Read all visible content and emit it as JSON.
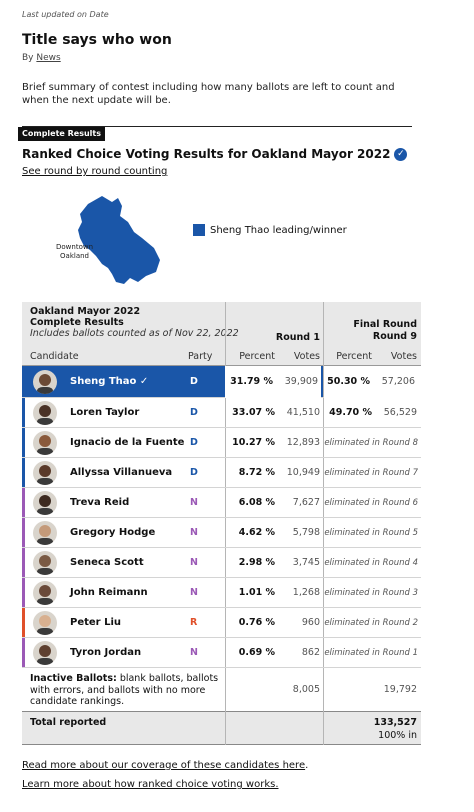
{
  "header": {
    "updated": "Last updated on Date",
    "title": "Title says who won",
    "by_prefix": "By ",
    "by_link": "News",
    "summary": "Brief summary of contest including how many ballots are left to count and when the next update will be."
  },
  "section_badge": "Complete Results",
  "rcv": {
    "title": "Ranked Choice Voting Results for Oakland Mayor 2022",
    "round_link": "See round by round counting"
  },
  "map": {
    "label_line1": "Downtown",
    "label_line2": "Oakland",
    "legend": "Sheng Thao leading/winner",
    "color": "#1a56a8"
  },
  "table": {
    "contest": "Oakland Mayor 2022",
    "complete": "Complete Results",
    "includes": "Includes ballots counted as of Nov 22, 2022",
    "round1": "Round 1",
    "final_round_line1": "Final Round",
    "final_round_line2": "Round 9",
    "col_candidate": "Candidate",
    "col_party": "Party",
    "col_percent": "Percent",
    "col_votes": "Votes",
    "rows": [
      {
        "name": "Sheng Thao",
        "winner_mark": "✓",
        "party": "D",
        "pct1": "31.79 %",
        "votes1": "39,909",
        "pct9": "50.30 %",
        "votes9": "57,206",
        "elim": ""
      },
      {
        "name": "Loren Taylor",
        "winner_mark": "",
        "party": "D",
        "pct1": "33.07 %",
        "votes1": "41,510",
        "pct9": "49.70 %",
        "votes9": "56,529",
        "elim": ""
      },
      {
        "name": "Ignacio de la Fuente",
        "winner_mark": "",
        "party": "D",
        "pct1": "10.27 %",
        "votes1": "12,893",
        "pct9": "",
        "votes9": "",
        "elim": "eliminated in Round 8"
      },
      {
        "name": "Allyssa Villanueva",
        "winner_mark": "",
        "party": "D",
        "pct1": "8.72 %",
        "votes1": "10,949",
        "pct9": "",
        "votes9": "",
        "elim": "eliminated in Round 7"
      },
      {
        "name": "Treva Reid",
        "winner_mark": "",
        "party": "N",
        "pct1": "6.08 %",
        "votes1": "7,627",
        "pct9": "",
        "votes9": "",
        "elim": "eliminated in Round 6"
      },
      {
        "name": "Gregory Hodge",
        "winner_mark": "",
        "party": "N",
        "pct1": "4.62 %",
        "votes1": "5,798",
        "pct9": "",
        "votes9": "",
        "elim": "eliminated in Round 5"
      },
      {
        "name": "Seneca Scott",
        "winner_mark": "",
        "party": "N",
        "pct1": "2.98 %",
        "votes1": "3,745",
        "pct9": "",
        "votes9": "",
        "elim": "eliminated in Round 4"
      },
      {
        "name": "John Reimann",
        "winner_mark": "",
        "party": "N",
        "pct1": "1.01 %",
        "votes1": "1,268",
        "pct9": "",
        "votes9": "",
        "elim": "eliminated in Round 3"
      },
      {
        "name": "Peter Liu",
        "winner_mark": "",
        "party": "R",
        "pct1": "0.76 %",
        "votes1": "960",
        "pct9": "",
        "votes9": "",
        "elim": "eliminated in Round 2"
      },
      {
        "name": "Tyron Jordan",
        "winner_mark": "",
        "party": "N",
        "pct1": "0.69 %",
        "votes1": "862",
        "pct9": "",
        "votes9": "",
        "elim": "eliminated in Round 1"
      }
    ],
    "party_colors": {
      "D": "#1a56a8",
      "N": "#9b59b6",
      "R": "#e0502a"
    },
    "inactive_label": "Inactive Ballots:",
    "inactive_text": "blank ballots, ballots with errors, and  ballots with no more candidate rankings.",
    "inactive_votes1": "8,005",
    "inactive_votes9": "19,792",
    "total_label": "Total reported",
    "total_votes": "133,527",
    "total_pct": "100% in"
  },
  "footer": {
    "link1": "Read more about our coverage of these candidates here",
    "link1_suffix": ".",
    "link2": "Learn more about how ranked choice voting works."
  }
}
